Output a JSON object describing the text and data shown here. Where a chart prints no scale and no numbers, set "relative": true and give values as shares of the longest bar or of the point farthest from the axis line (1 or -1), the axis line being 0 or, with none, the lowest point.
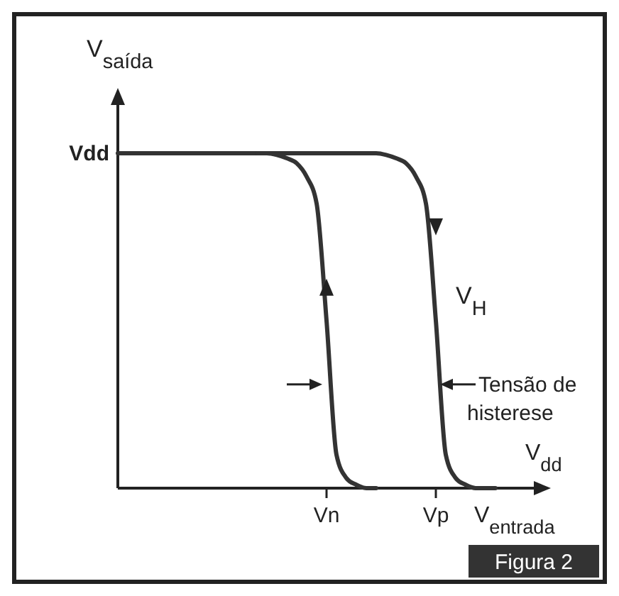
{
  "chart_data": {
    "type": "line",
    "relative": true,
    "ylabel": "V$_{saída}$",
    "xlabel": "V$_{entrada}$",
    "categories": [
      null,
      null,
      null,
      null,
      null,
      null,
      null,
      null,
      null,
      null,
      null,
      null,
      null,
      null,
      null,
      null,
      null,
      null,
      null,
      null,
      null,
      "Vn",
      null,
      null,
      null,
      null,
      null,
      null,
      null,
      null,
      null,
      null,
      "Vp",
      null,
      null,
      null,
      null,
      null,
      null,
      null,
      null
    ],
    "series": [
      {
        "color": "#333333",
        "values": [
          1,
          1,
          1,
          1,
          1,
          1,
          1,
          1,
          1,
          1,
          1,
          1,
          1,
          1,
          1,
          1,
          0.995,
          0.985,
          0.97,
          0.93,
          0.85,
          0.5,
          0.1,
          0.03,
          0.01,
          0,
          0,
          null,
          null,
          null,
          null,
          null,
          null,
          null,
          null,
          null,
          null,
          null,
          null,
          null,
          null
        ]
      },
      {
        "color": "#333333",
        "values": [
          null,
          null,
          null,
          null,
          null,
          null,
          null,
          null,
          null,
          null,
          null,
          null,
          null,
          null,
          1,
          1,
          1,
          1,
          1,
          1,
          1,
          1,
          1,
          1,
          1,
          1,
          1,
          0.995,
          0.985,
          0.97,
          0.93,
          0.85,
          0.5,
          0.1,
          0.03,
          0.01,
          0,
          0,
          0,
          null,
          null
        ]
      }
    ],
    "annotations": [
      "Vdd",
      "V$_{H}$",
      "Tensão de histerese",
      "V$_{dd}$",
      "Figura 2"
    ]
  }
}
